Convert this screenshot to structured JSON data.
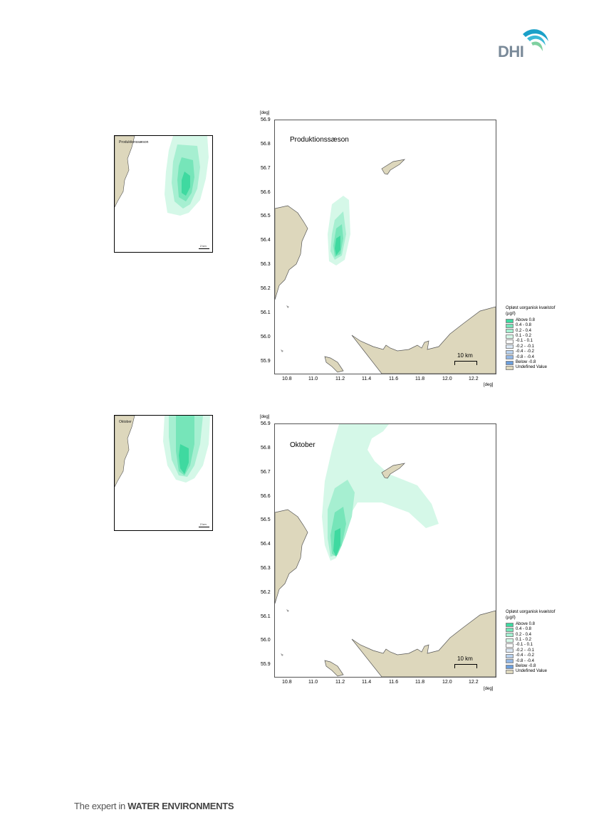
{
  "footer": {
    "prefix": "The expert in ",
    "emphasis": "WATER ENVIRONMENTS"
  },
  "logo": {
    "text": "DHI"
  },
  "units": {
    "deg": "[deg]"
  },
  "y_ticks": [
    "56.9",
    "56.8",
    "56.7",
    "56.6",
    "56.5",
    "56.4",
    "56.3",
    "56.2",
    "56.1",
    "56.0",
    "55.9"
  ],
  "x_ticks": [
    "10.8",
    "11.0",
    "11.2",
    "11.4",
    "11.6",
    "11.8",
    "12.0",
    "12.2"
  ],
  "scalebar": "10 km",
  "legend": {
    "title_line1": "Opløst uorganisk kvælstof",
    "title_line2": "(µg/l)",
    "items": [
      {
        "label": "Above  0.8",
        "color": "#3fd9a0"
      },
      {
        "label": "0.4 -  0.8",
        "color": "#76e5b9"
      },
      {
        "label": "0.2 -  0.4",
        "color": "#a6efd1"
      },
      {
        "label": "0.1 -  0.2",
        "color": "#d5f8e8"
      },
      {
        "label": "-0.1 -  0.1",
        "color": "#ffffff"
      },
      {
        "label": "-0.2 - -0.1",
        "color": "#dce8f5"
      },
      {
        "label": "-0.4 - -0.2",
        "color": "#b9d2ee"
      },
      {
        "label": "-0.8 - -0.4",
        "color": "#93b8e6"
      },
      {
        "label": "Below -0.8",
        "color": "#6b9edc"
      },
      {
        "label": "Undefined Value",
        "color": "#ddd7bc"
      }
    ]
  },
  "panels": [
    {
      "label": "Produktionssæson",
      "inset_label": "Produktionssæson",
      "inset_scale": "2 km"
    },
    {
      "label": "Oktober",
      "inset_label": "Oktober",
      "inset_scale": "2 km"
    }
  ]
}
